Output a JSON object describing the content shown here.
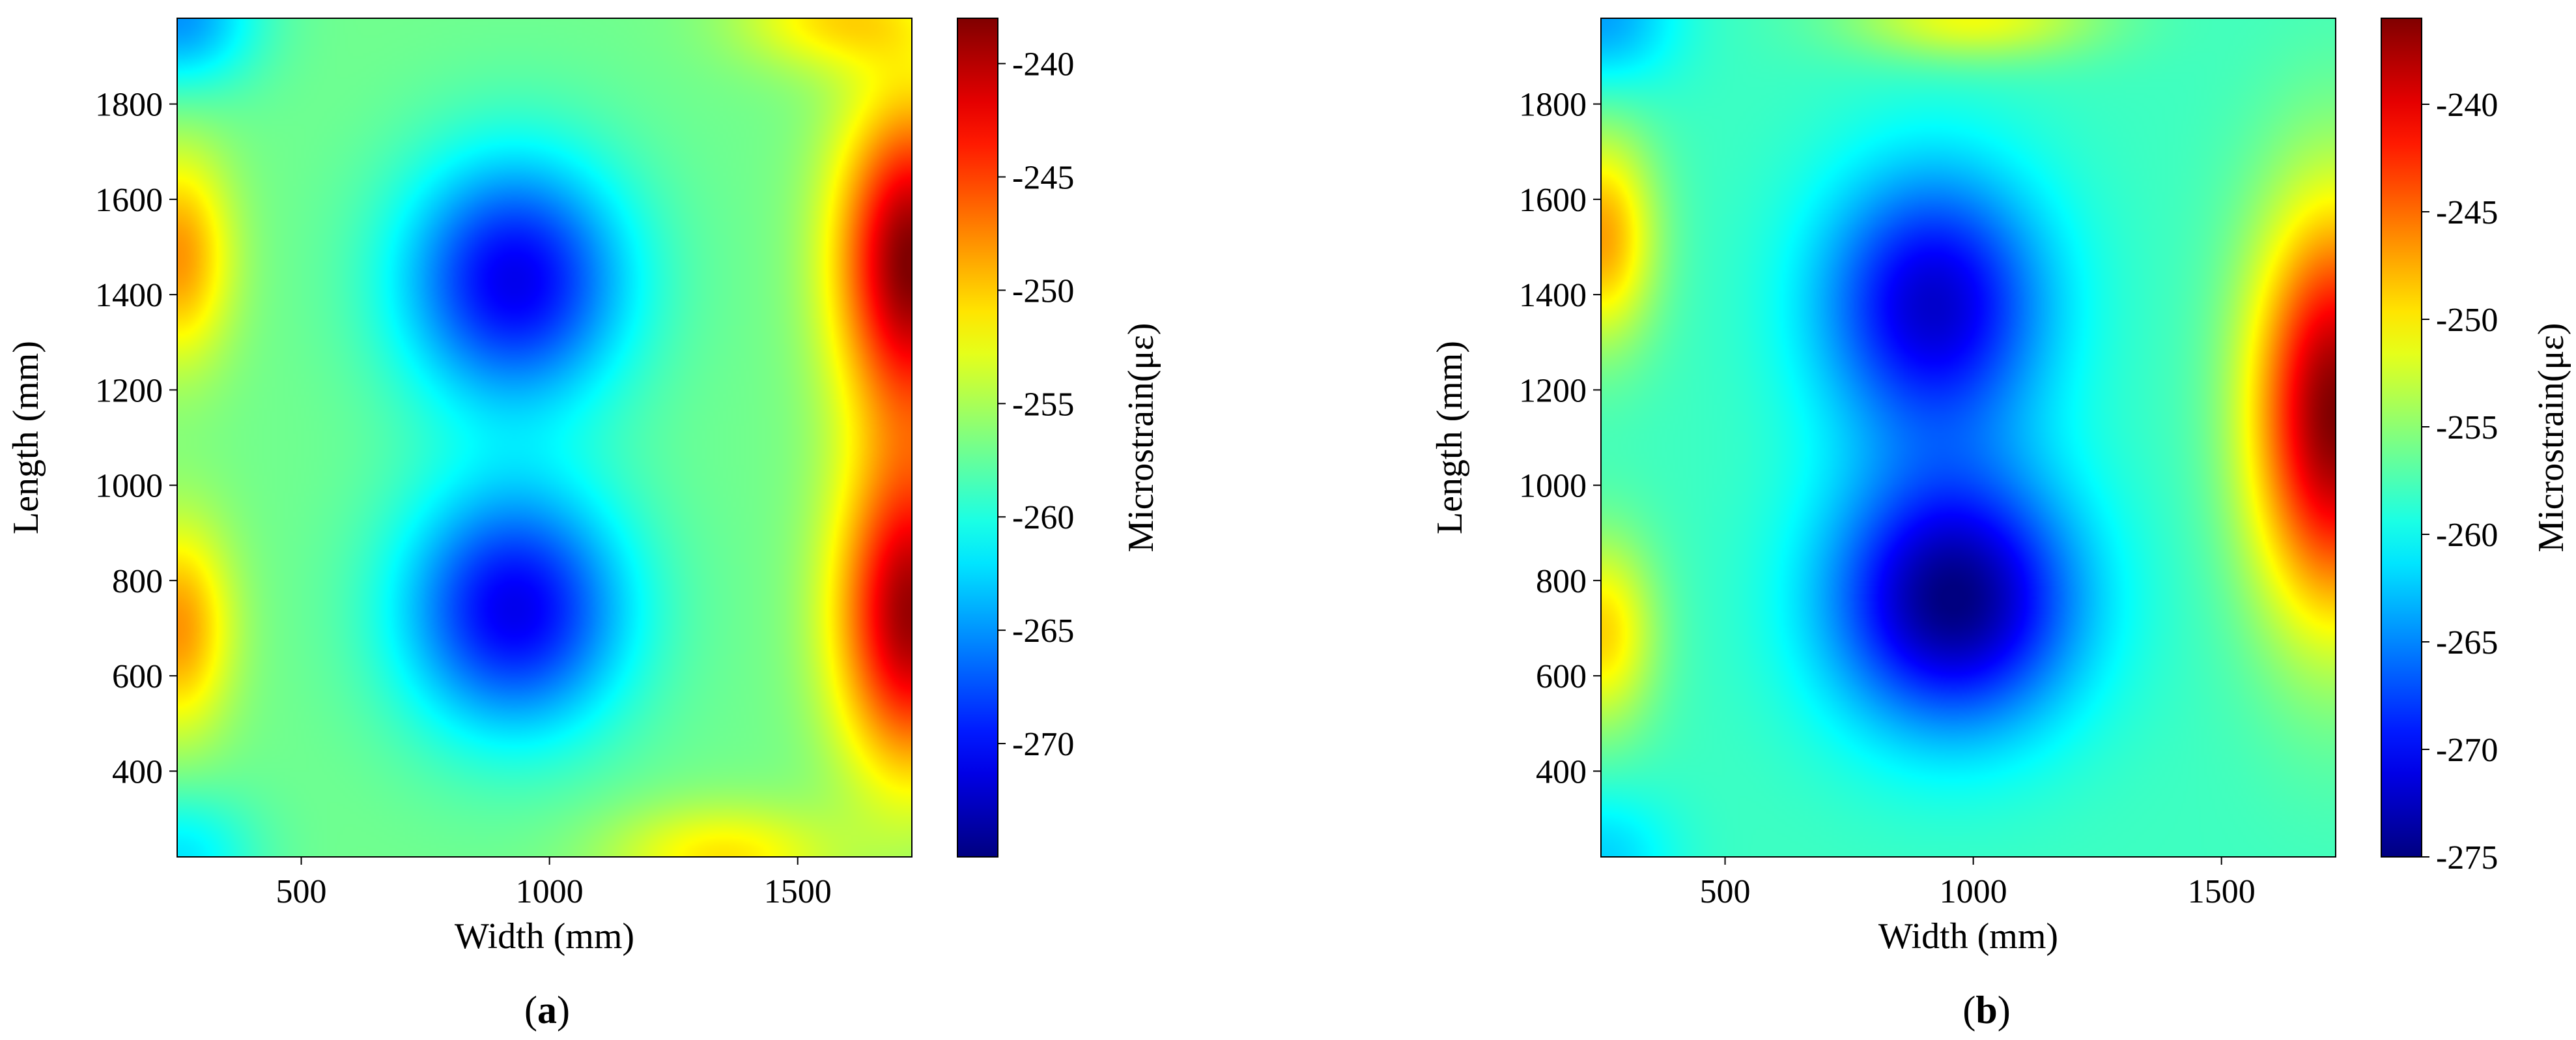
{
  "figure": {
    "panels": [
      {
        "caption_open": "(",
        "caption_letter": "a",
        "caption_close": ")"
      },
      {
        "caption_open": "(",
        "caption_letter": "b",
        "caption_close": ")"
      }
    ]
  },
  "chart_data": [
    {
      "type": "heatmap",
      "title": "",
      "xlabel": "Width (mm)",
      "ylabel": "Length (mm)",
      "colorbar_label": "Microstrain(με)",
      "colormap": "jet",
      "xlim": [
        250,
        1730
      ],
      "ylim": [
        220,
        1980
      ],
      "xticks": [
        500,
        1000,
        1500
      ],
      "yticks": [
        400,
        600,
        800,
        1000,
        1200,
        1400,
        1600,
        1800
      ],
      "colorbar_range": [
        -275,
        -238
      ],
      "colorbar_ticks": [
        -240,
        -245,
        -250,
        -255,
        -260,
        -265,
        -270
      ],
      "field": {
        "base": -257,
        "features": [
          {
            "kind": "min",
            "x": 930,
            "y": 1430,
            "value": -271,
            "sx": 230,
            "sy": 260
          },
          {
            "kind": "min",
            "x": 930,
            "y": 740,
            "value": -271,
            "sx": 230,
            "sy": 260
          },
          {
            "kind": "max",
            "x": 1730,
            "y": 1470,
            "value": -238,
            "sx": 150,
            "sy": 330
          },
          {
            "kind": "max",
            "x": 1730,
            "y": 730,
            "value": -239,
            "sx": 150,
            "sy": 330
          },
          {
            "kind": "max",
            "x": 250,
            "y": 1480,
            "value": -248,
            "sx": 110,
            "sy": 220
          },
          {
            "kind": "max",
            "x": 250,
            "y": 700,
            "value": -248,
            "sx": 110,
            "sy": 220
          },
          {
            "kind": "min",
            "x": 250,
            "y": 1980,
            "value": -265,
            "sx": 160,
            "sy": 150
          },
          {
            "kind": "min",
            "x": 250,
            "y": 220,
            "value": -262,
            "sx": 160,
            "sy": 140
          },
          {
            "kind": "max",
            "x": 1350,
            "y": 220,
            "value": -251,
            "sx": 230,
            "sy": 110
          },
          {
            "kind": "max",
            "x": 1580,
            "y": 1980,
            "value": -251,
            "sx": 200,
            "sy": 110
          }
        ]
      }
    },
    {
      "type": "heatmap",
      "title": "",
      "xlabel": "Width (mm)",
      "ylabel": "Length (mm)",
      "colorbar_label": "Microstrain(με)",
      "colormap": "jet",
      "xlim": [
        250,
        1730
      ],
      "ylim": [
        220,
        1980
      ],
      "xticks": [
        500,
        1000,
        1500
      ],
      "yticks": [
        400,
        600,
        800,
        1000,
        1200,
        1400,
        1600,
        1800
      ],
      "colorbar_range": [
        -275,
        -236
      ],
      "colorbar_ticks": [
        -240,
        -245,
        -250,
        -255,
        -260,
        -265,
        -270,
        -275
      ],
      "field": {
        "base": -258,
        "features": [
          {
            "kind": "min",
            "x": 920,
            "y": 1380,
            "value": -272,
            "sx": 230,
            "sy": 280
          },
          {
            "kind": "min",
            "x": 960,
            "y": 760,
            "value": -275,
            "sx": 250,
            "sy": 270
          },
          {
            "kind": "max",
            "x": 1730,
            "y": 1150,
            "value": -236,
            "sx": 170,
            "sy": 430
          },
          {
            "kind": "max",
            "x": 250,
            "y": 1520,
            "value": -247,
            "sx": 110,
            "sy": 220
          },
          {
            "kind": "max",
            "x": 250,
            "y": 690,
            "value": -249,
            "sx": 110,
            "sy": 200
          },
          {
            "kind": "min",
            "x": 250,
            "y": 1980,
            "value": -264,
            "sx": 150,
            "sy": 150
          },
          {
            "kind": "min",
            "x": 250,
            "y": 220,
            "value": -262,
            "sx": 150,
            "sy": 140
          },
          {
            "kind": "max",
            "x": 1000,
            "y": 1980,
            "value": -251,
            "sx": 250,
            "sy": 90
          }
        ]
      }
    }
  ]
}
